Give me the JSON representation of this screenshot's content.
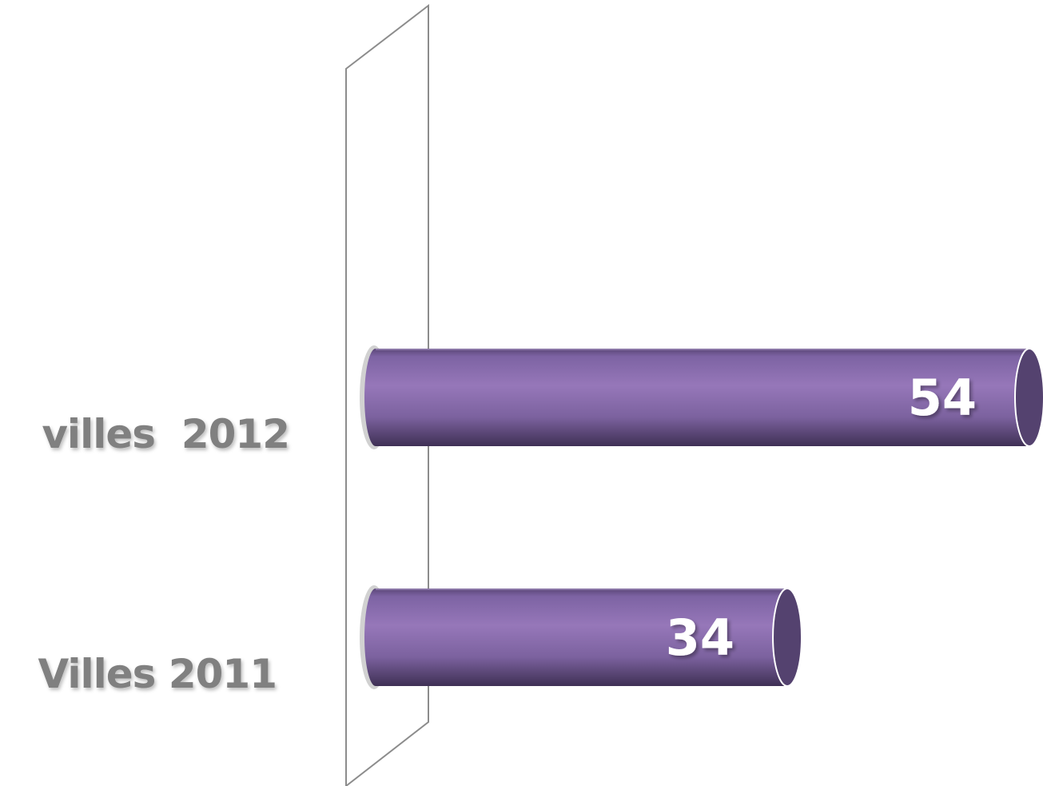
{
  "chart_data": {
    "type": "bar",
    "orientation": "horizontal",
    "style": "3d-cylinder",
    "categories": [
      "villes  2012",
      "Villes 2011"
    ],
    "values": [
      54,
      34
    ],
    "data_labels": [
      "54",
      "34"
    ],
    "title": "",
    "xlabel": "",
    "ylabel": "",
    "xlim": [
      0,
      54
    ],
    "grid": false,
    "legend": "none",
    "colors": {
      "bar": "#8f74b5",
      "bar_dark": "#4f3d6a",
      "bar_end": "#54426f",
      "category_label": "#808080",
      "value_label": "#ffffff",
      "axis_wall": "#8c8c8c"
    }
  }
}
